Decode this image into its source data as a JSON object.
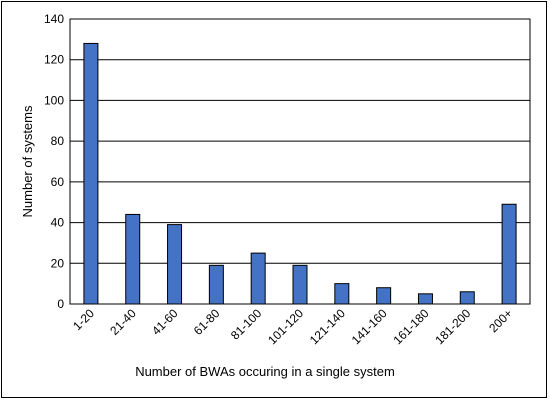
{
  "chart_data": {
    "type": "bar",
    "categories": [
      "1-20",
      "21-40",
      "41-60",
      "61-80",
      "81-100",
      "101-120",
      "121-140",
      "141-160",
      "161-180",
      "181-200",
      "200+"
    ],
    "series": [
      {
        "values": [
          128,
          44,
          39,
          19,
          25,
          19,
          10,
          8,
          5,
          6,
          49
        ]
      }
    ],
    "xlabel": "Number of BWAs occuring in a single system",
    "ylabel": "Number of systems",
    "ylim": [
      0,
      140
    ],
    "yticks": [
      0,
      20,
      40,
      60,
      80,
      100,
      120,
      140
    ],
    "grid": true,
    "legend": "none",
    "colors": {
      "bar": "#4472C4",
      "bar_edge": "#000000",
      "grid": "#000000"
    }
  }
}
